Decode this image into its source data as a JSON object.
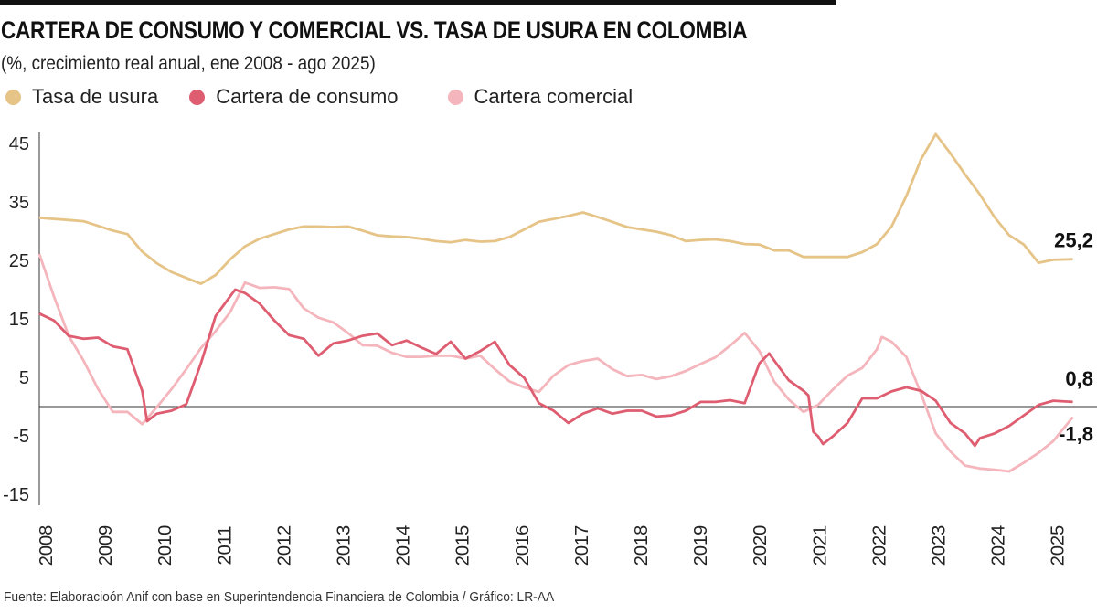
{
  "title": "CARTERA DE CONSUMO Y COMERCIAL VS. TASA DE USURA EN COLOMBIA",
  "subtitle": "(%, crecimiento real anual, ene 2008 - ago 2025)",
  "footnote": "Fuente: Elaboracioón Anif con base en Superintendencia Financiera de Colombia / Gráfico: LR-AA",
  "chart_data": {
    "type": "line",
    "title": "CARTERA DE CONSUMO Y COMERCIAL VS. TASA DE USURA EN COLOMBIA",
    "xlabel": "",
    "ylabel": "",
    "ylim": [
      -15,
      47
    ],
    "yticks": [
      "45",
      "35",
      "25",
      "15",
      "5",
      "-5",
      "-15"
    ],
    "ytick_values": [
      45,
      35,
      25,
      15,
      5,
      -5,
      -15
    ],
    "xticks": [
      "2008",
      "2009",
      "2010",
      "2011",
      "2012",
      "2013",
      "2014",
      "2015",
      "2016",
      "2017",
      "2018",
      "2019",
      "2020",
      "2021",
      "2022",
      "2023",
      "2024",
      "2025"
    ],
    "grid": false,
    "zero_line": true,
    "legend_position": "top-left",
    "series": [
      {
        "name": "Tasa de usura",
        "color": "#e6c488",
        "end_label": "25,2",
        "points": [
          [
            "2008-01",
            32.3
          ],
          [
            "2008-04",
            32.1
          ],
          [
            "2008-07",
            31.9
          ],
          [
            "2008-10",
            31.7
          ],
          [
            "2009-01",
            30.9
          ],
          [
            "2009-04",
            30.1
          ],
          [
            "2009-07",
            29.5
          ],
          [
            "2009-10",
            26.5
          ],
          [
            "2010-01",
            24.5
          ],
          [
            "2010-04",
            23.0
          ],
          [
            "2010-07",
            22.0
          ],
          [
            "2010-10",
            21.0
          ],
          [
            "2011-01",
            22.5
          ],
          [
            "2011-04",
            25.2
          ],
          [
            "2011-07",
            27.4
          ],
          [
            "2011-10",
            28.7
          ],
          [
            "2012-01",
            29.5
          ],
          [
            "2012-04",
            30.3
          ],
          [
            "2012-07",
            30.8
          ],
          [
            "2012-10",
            30.8
          ],
          [
            "2013-01",
            30.7
          ],
          [
            "2013-04",
            30.8
          ],
          [
            "2013-07",
            30.1
          ],
          [
            "2013-10",
            29.3
          ],
          [
            "2014-01",
            29.1
          ],
          [
            "2014-04",
            29.0
          ],
          [
            "2014-07",
            28.7
          ],
          [
            "2014-10",
            28.3
          ],
          [
            "2015-01",
            28.1
          ],
          [
            "2015-04",
            28.5
          ],
          [
            "2015-07",
            28.2
          ],
          [
            "2015-10",
            28.3
          ],
          [
            "2016-01",
            29.0
          ],
          [
            "2016-04",
            30.3
          ],
          [
            "2016-07",
            31.6
          ],
          [
            "2016-10",
            32.1
          ],
          [
            "2017-01",
            32.6
          ],
          [
            "2017-04",
            33.2
          ],
          [
            "2017-07",
            32.4
          ],
          [
            "2017-10",
            31.6
          ],
          [
            "2018-01",
            30.7
          ],
          [
            "2018-04",
            30.3
          ],
          [
            "2018-07",
            29.9
          ],
          [
            "2018-10",
            29.3
          ],
          [
            "2019-01",
            28.3
          ],
          [
            "2019-04",
            28.5
          ],
          [
            "2019-07",
            28.6
          ],
          [
            "2019-10",
            28.3
          ],
          [
            "2020-01",
            27.8
          ],
          [
            "2020-04",
            27.7
          ],
          [
            "2020-07",
            26.7
          ],
          [
            "2020-10",
            26.7
          ],
          [
            "2021-01",
            25.6
          ],
          [
            "2021-04",
            25.6
          ],
          [
            "2021-07",
            25.6
          ],
          [
            "2021-10",
            25.6
          ],
          [
            "2022-01",
            26.4
          ],
          [
            "2022-04",
            27.8
          ],
          [
            "2022-07",
            30.8
          ],
          [
            "2022-10",
            36.0
          ],
          [
            "2023-01",
            42.3
          ],
          [
            "2023-04",
            46.6
          ],
          [
            "2023-07",
            43.3
          ],
          [
            "2023-10",
            39.7
          ],
          [
            "2024-01",
            36.3
          ],
          [
            "2024-04",
            32.4
          ],
          [
            "2024-07",
            29.3
          ],
          [
            "2024-10",
            27.7
          ],
          [
            "2025-01",
            24.6
          ],
          [
            "2025-04",
            25.1
          ],
          [
            "2025-08",
            25.2
          ]
        ]
      },
      {
        "name": "Cartera de consumo",
        "color": "#de5d70",
        "end_label": "0,8",
        "points": [
          [
            "2008-01",
            15.9
          ],
          [
            "2008-04",
            14.7
          ],
          [
            "2008-07",
            12.1
          ],
          [
            "2008-10",
            11.6
          ],
          [
            "2009-01",
            11.8
          ],
          [
            "2009-04",
            10.3
          ],
          [
            "2009-07",
            9.8
          ],
          [
            "2009-10",
            2.7
          ],
          [
            "2009-11",
            -2.5
          ],
          [
            "2010-01",
            -1.2
          ],
          [
            "2010-04",
            -0.7
          ],
          [
            "2010-07",
            0.4
          ],
          [
            "2010-10",
            7.4
          ],
          [
            "2011-01",
            15.5
          ],
          [
            "2011-04",
            18.9
          ],
          [
            "2011-05",
            20.0
          ],
          [
            "2011-07",
            19.4
          ],
          [
            "2011-10",
            17.6
          ],
          [
            "2012-01",
            14.7
          ],
          [
            "2012-04",
            12.2
          ],
          [
            "2012-07",
            11.6
          ],
          [
            "2012-10",
            8.7
          ],
          [
            "2013-01",
            10.8
          ],
          [
            "2013-04",
            11.3
          ],
          [
            "2013-07",
            12.1
          ],
          [
            "2013-10",
            12.5
          ],
          [
            "2014-01",
            10.5
          ],
          [
            "2014-04",
            11.3
          ],
          [
            "2014-07",
            10.1
          ],
          [
            "2014-10",
            9.0
          ],
          [
            "2015-01",
            11.1
          ],
          [
            "2015-04",
            8.2
          ],
          [
            "2015-07",
            9.5
          ],
          [
            "2015-10",
            11.1
          ],
          [
            "2016-01",
            7.1
          ],
          [
            "2016-04",
            4.9
          ],
          [
            "2016-07",
            0.6
          ],
          [
            "2016-10",
            -0.7
          ],
          [
            "2017-01",
            -2.8
          ],
          [
            "2017-04",
            -1.2
          ],
          [
            "2017-07",
            -0.3
          ],
          [
            "2017-10",
            -1.2
          ],
          [
            "2018-01",
            -0.7
          ],
          [
            "2018-04",
            -0.7
          ],
          [
            "2018-07",
            -1.7
          ],
          [
            "2018-10",
            -1.5
          ],
          [
            "2019-01",
            -0.7
          ],
          [
            "2019-04",
            0.8
          ],
          [
            "2019-07",
            0.8
          ],
          [
            "2019-10",
            1.1
          ],
          [
            "2020-01",
            0.6
          ],
          [
            "2020-04",
            7.4
          ],
          [
            "2020-06",
            9.1
          ],
          [
            "2020-07",
            7.9
          ],
          [
            "2020-10",
            4.5
          ],
          [
            "2021-01",
            2.7
          ],
          [
            "2021-02",
            1.9
          ],
          [
            "2021-03",
            -4.3
          ],
          [
            "2021-04",
            -5.1
          ],
          [
            "2021-05",
            -6.4
          ],
          [
            "2021-07",
            -5.1
          ],
          [
            "2021-10",
            -2.8
          ],
          [
            "2022-01",
            1.4
          ],
          [
            "2022-04",
            1.4
          ],
          [
            "2022-07",
            2.6
          ],
          [
            "2022-10",
            3.3
          ],
          [
            "2023-01",
            2.7
          ],
          [
            "2023-04",
            1.0
          ],
          [
            "2023-07",
            -2.8
          ],
          [
            "2023-10",
            -4.6
          ],
          [
            "2023-12",
            -6.7
          ],
          [
            "2024-01",
            -5.4
          ],
          [
            "2024-04",
            -4.6
          ],
          [
            "2024-07",
            -3.3
          ],
          [
            "2024-10",
            -1.5
          ],
          [
            "2025-01",
            0.3
          ],
          [
            "2025-04",
            1.0
          ],
          [
            "2025-08",
            0.8
          ]
        ]
      },
      {
        "name": "Cartera comercial",
        "color": "#f4b6bc",
        "end_label": "-1,8",
        "points": [
          [
            "2008-01",
            26.1
          ],
          [
            "2008-04",
            18.8
          ],
          [
            "2008-07",
            12.1
          ],
          [
            "2008-10",
            7.9
          ],
          [
            "2009-01",
            3.0
          ],
          [
            "2009-04",
            -0.9
          ],
          [
            "2009-07",
            -0.9
          ],
          [
            "2009-10",
            -3.0
          ],
          [
            "2010-01",
            -0.1
          ],
          [
            "2010-04",
            3.0
          ],
          [
            "2010-07",
            6.4
          ],
          [
            "2010-10",
            10.0
          ],
          [
            "2011-01",
            12.9
          ],
          [
            "2011-04",
            16.2
          ],
          [
            "2011-07",
            21.2
          ],
          [
            "2011-10",
            20.3
          ],
          [
            "2012-01",
            20.4
          ],
          [
            "2012-04",
            20.1
          ],
          [
            "2012-07",
            16.8
          ],
          [
            "2012-10",
            15.2
          ],
          [
            "2013-01",
            14.4
          ],
          [
            "2013-04",
            12.6
          ],
          [
            "2013-07",
            10.5
          ],
          [
            "2013-10",
            10.4
          ],
          [
            "2014-01",
            9.2
          ],
          [
            "2014-04",
            8.5
          ],
          [
            "2014-07",
            8.5
          ],
          [
            "2014-10",
            8.7
          ],
          [
            "2015-01",
            8.7
          ],
          [
            "2015-04",
            8.2
          ],
          [
            "2015-07",
            8.7
          ],
          [
            "2015-10",
            6.4
          ],
          [
            "2016-01",
            4.3
          ],
          [
            "2016-04",
            3.3
          ],
          [
            "2016-07",
            2.5
          ],
          [
            "2016-10",
            5.3
          ],
          [
            "2017-01",
            7.1
          ],
          [
            "2017-04",
            7.8
          ],
          [
            "2017-07",
            8.2
          ],
          [
            "2017-10",
            6.4
          ],
          [
            "2018-01",
            5.2
          ],
          [
            "2018-04",
            5.4
          ],
          [
            "2018-07",
            4.7
          ],
          [
            "2018-10",
            5.2
          ],
          [
            "2019-01",
            6.1
          ],
          [
            "2019-04",
            7.3
          ],
          [
            "2019-07",
            8.4
          ],
          [
            "2019-10",
            10.4
          ],
          [
            "2020-01",
            12.6
          ],
          [
            "2020-04",
            9.5
          ],
          [
            "2020-07",
            4.3
          ],
          [
            "2020-10",
            1.2
          ],
          [
            "2021-01",
            -0.9
          ],
          [
            "2021-04",
            0.3
          ],
          [
            "2021-07",
            2.9
          ],
          [
            "2021-10",
            5.3
          ],
          [
            "2022-01",
            6.6
          ],
          [
            "2022-04",
            9.8
          ],
          [
            "2022-05",
            11.9
          ],
          [
            "2022-07",
            11.1
          ],
          [
            "2022-10",
            8.5
          ],
          [
            "2023-01",
            2.2
          ],
          [
            "2023-04",
            -4.6
          ],
          [
            "2023-07",
            -7.7
          ],
          [
            "2023-10",
            -10.1
          ],
          [
            "2024-01",
            -10.6
          ],
          [
            "2024-04",
            -10.8
          ],
          [
            "2024-07",
            -11.1
          ],
          [
            "2024-10",
            -9.6
          ],
          [
            "2025-01",
            -7.9
          ],
          [
            "2025-04",
            -5.9
          ],
          [
            "2025-08",
            -1.8
          ]
        ]
      }
    ]
  }
}
